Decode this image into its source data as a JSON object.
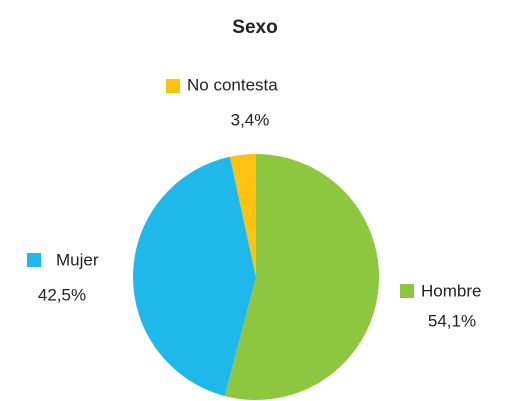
{
  "chart_data": {
    "type": "pie",
    "title": "Sexo",
    "categories": [
      "Hombre",
      "Mujer",
      "No contesta"
    ],
    "values": [
      54.1,
      42.5,
      3.4
    ],
    "value_labels": [
      "54,1%",
      "42,5%",
      "3,4%"
    ],
    "colors": [
      "#8dc63f",
      "#1eb9ea",
      "#ffc20e"
    ]
  }
}
